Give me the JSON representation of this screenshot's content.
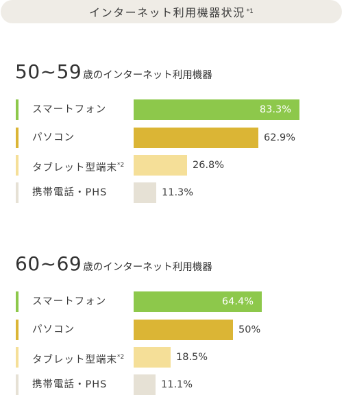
{
  "header": {
    "title": "インターネット利用機器状況",
    "note": "*1"
  },
  "colors": {
    "smartphone": "#8dc84b",
    "pc": "#dbb535",
    "tablet": "#f5df98",
    "mobile": "#e6e1d5"
  },
  "chart_data": [
    {
      "type": "bar",
      "orientation": "horizontal",
      "title_number": "50~59",
      "title_suffix": "歳のインターネット利用機器",
      "unit": "%",
      "xlim": [
        0,
        100
      ],
      "categories": [
        "スマートフォン",
        "パソコン",
        "タブレット型端末",
        "携帯電話・PHS"
      ],
      "category_notes": [
        "",
        "",
        "*2",
        ""
      ],
      "values": [
        83.3,
        62.9,
        26.8,
        11.3
      ],
      "value_labels": [
        "83.3%",
        "62.9%",
        "26.8%",
        "11.3%"
      ]
    },
    {
      "type": "bar",
      "orientation": "horizontal",
      "title_number": "60~69",
      "title_suffix": "歳のインターネット利用機器",
      "unit": "%",
      "xlim": [
        0,
        100
      ],
      "categories": [
        "スマートフォン",
        "パソコン",
        "タブレット型端末",
        "携帯電話・PHS"
      ],
      "category_notes": [
        "",
        "",
        "*2",
        ""
      ],
      "values": [
        64.4,
        50,
        18.5,
        11.1
      ],
      "value_labels": [
        "64.4%",
        "50%",
        "18.5%",
        "11.1%"
      ]
    }
  ]
}
